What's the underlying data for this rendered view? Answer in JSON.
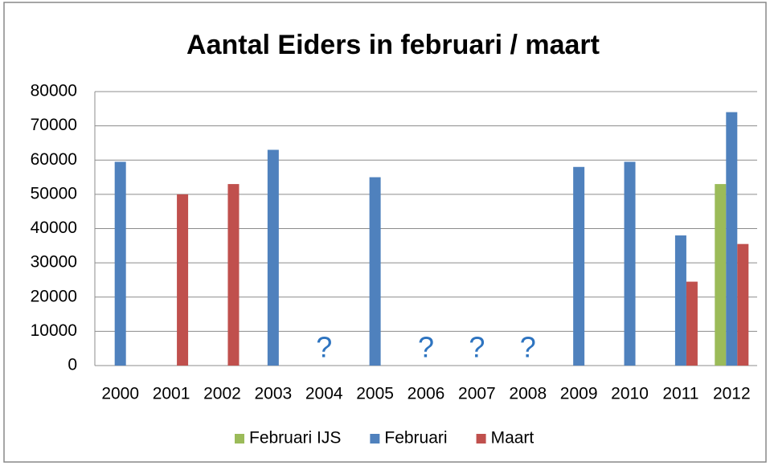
{
  "chart_data": {
    "type": "bar",
    "title": "Aantal Eiders in februari / maart",
    "categories": [
      "2000",
      "2001",
      "2002",
      "2003",
      "2004",
      "2005",
      "2006",
      "2007",
      "2008",
      "2009",
      "2010",
      "2011",
      "2012"
    ],
    "series": [
      {
        "name": "Februari IJS",
        "color": "#9bbb59",
        "values": [
          null,
          null,
          null,
          null,
          null,
          null,
          null,
          null,
          null,
          null,
          null,
          null,
          53000
        ]
      },
      {
        "name": "Februari",
        "color": "#4f81bd",
        "values": [
          59500,
          null,
          null,
          63000,
          null,
          55000,
          null,
          null,
          null,
          58000,
          59500,
          38000,
          74000
        ]
      },
      {
        "name": "Maart",
        "color": "#c0504d",
        "values": [
          null,
          50000,
          53000,
          null,
          null,
          null,
          null,
          null,
          null,
          null,
          null,
          24500,
          35500
        ]
      }
    ],
    "annotations": [
      {
        "text": "?",
        "x": "2004"
      },
      {
        "text": "?",
        "x": "2006"
      },
      {
        "text": "?",
        "x": "2007"
      },
      {
        "text": "?",
        "x": "2008"
      }
    ],
    "ylim": [
      0,
      80000
    ],
    "yticks": [
      0,
      10000,
      20000,
      30000,
      40000,
      50000,
      60000,
      70000,
      80000
    ],
    "grid": true,
    "legend": "bottom"
  }
}
